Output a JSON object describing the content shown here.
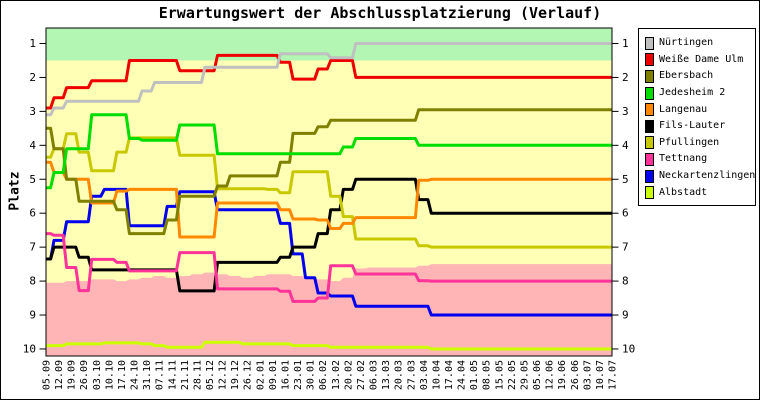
{
  "chart_data": {
    "type": "line",
    "title": "Erwartungswert der Abschlussplatzierung (Verlauf)",
    "ylabel": "Platz",
    "y_ticks": [
      "1",
      "2",
      "3",
      "4",
      "5",
      "6",
      "7",
      "8",
      "9",
      "10"
    ],
    "ylim": [
      0.55,
      10.2
    ],
    "y_inverted": true,
    "grid": false,
    "legend_position": "right-outside",
    "x_labels": [
      "05.09",
      "12.09",
      "19.09",
      "26.09",
      "03.10",
      "10.10",
      "17.10",
      "24.10",
      "31.10",
      "07.11",
      "14.11",
      "21.11",
      "28.11",
      "05.12",
      "12.12",
      "19.12",
      "26.12",
      "02.01",
      "09.01",
      "16.01",
      "23.01",
      "30.01",
      "06.02",
      "13.02",
      "20.02",
      "27.02",
      "06.03",
      "13.03",
      "20.03",
      "27.03",
      "03.04",
      "10.04",
      "17.04",
      "24.04",
      "01.05",
      "08.05",
      "15.05",
      "22.05",
      "29.05",
      "05.06",
      "12.06",
      "19.06",
      "26.06",
      "03.07",
      "10.07",
      "17.07"
    ],
    "bands": {
      "promotion_color": "#b3f6b3",
      "neutral_color": "#ffffb5",
      "relegation_color": "#ffb5b5",
      "promotion_until_platz": 1.5,
      "relegation_boundary": [
        8.05,
        8.05,
        8,
        8,
        7.95,
        7.95,
        8,
        7.95,
        7.9,
        7.85,
        7.9,
        7.85,
        7.8,
        7.75,
        7.8,
        7.85,
        7.9,
        7.85,
        7.8,
        7.8,
        7.85,
        7.9,
        7.95,
        8,
        7.9,
        7.63,
        7.6,
        7.6,
        7.6,
        7.6,
        7.55,
        7.5,
        7.5,
        7.5,
        7.5,
        7.5,
        7.5,
        7.5,
        7.5,
        7.5,
        7.5,
        7.5,
        7.5,
        7.5,
        7.5,
        7.5
      ]
    },
    "series": [
      {
        "name": "Nürtingen",
        "color": "#c0c0c0",
        "values": [
          3.1,
          2.9,
          2.7,
          2.7,
          2.7,
          2.7,
          2.7,
          2.7,
          2.4,
          2.15,
          2.15,
          2.15,
          2.15,
          1.7,
          1.7,
          1.7,
          1.7,
          1.7,
          1.7,
          1.3,
          1.3,
          1.3,
          1.3,
          1.42,
          1.42,
          1,
          1,
          1,
          1,
          1,
          1,
          1,
          1,
          1,
          1,
          1,
          1,
          1,
          1,
          1,
          1,
          1,
          1,
          1,
          1,
          1
        ]
      },
      {
        "name": "Weiße Dame Ulm",
        "color": "#ee0000",
        "values": [
          2.9,
          2.6,
          2.3,
          2.3,
          2.1,
          2.1,
          2.1,
          1.5,
          1.5,
          1.5,
          1.5,
          1.8,
          1.8,
          1.8,
          1.35,
          1.35,
          1.35,
          1.35,
          1.35,
          1.55,
          2.05,
          2.05,
          1.75,
          1.5,
          1.5,
          2,
          2,
          2,
          2,
          2,
          2,
          2,
          2,
          2,
          2,
          2,
          2,
          2,
          2,
          2,
          2,
          2,
          2,
          2,
          2,
          2
        ]
      },
      {
        "name": "Ebersbach",
        "color": "#808000",
        "values": [
          3.5,
          4.1,
          5,
          5.65,
          5.65,
          5.65,
          5.9,
          6.6,
          6.6,
          6.6,
          6.2,
          5.5,
          5.5,
          5.5,
          5.2,
          4.9,
          4.9,
          4.9,
          4.9,
          4.5,
          3.65,
          3.65,
          3.45,
          3.26,
          3.26,
          3.26,
          3.26,
          3.26,
          3.26,
          3.26,
          2.95,
          2.95,
          2.95,
          2.95,
          2.95,
          2.95,
          2.95,
          2.95,
          2.95,
          2.95,
          2.95,
          2.95,
          2.95,
          2.95,
          2.95,
          2.95
        ]
      },
      {
        "name": "Jedesheim 2",
        "color": "#00dd00",
        "values": [
          5.25,
          4.8,
          4.1,
          4.1,
          3.1,
          3.1,
          3.1,
          3.8,
          3.85,
          3.85,
          3.85,
          3.4,
          3.4,
          3.4,
          4.25,
          4.25,
          4.25,
          4.25,
          4.25,
          4.25,
          4.25,
          4.25,
          4.25,
          4.25,
          4.05,
          3.8,
          3.8,
          3.8,
          3.8,
          3.8,
          4,
          4,
          4,
          4,
          4,
          4,
          4,
          4,
          4,
          4,
          4,
          4,
          4,
          4,
          4,
          4
        ]
      },
      {
        "name": "Langenau",
        "color": "#ff8800",
        "values": [
          4.5,
          4.8,
          5,
          5,
          5.7,
          5.7,
          5.35,
          5.3,
          5.3,
          5.3,
          5.3,
          6.7,
          6.7,
          6.7,
          5.7,
          5.7,
          5.7,
          5.7,
          5.7,
          5.9,
          6.17,
          6.17,
          6.2,
          6.45,
          6.3,
          6.13,
          6.13,
          6.13,
          6.13,
          6.13,
          5.03,
          5,
          5,
          5,
          5,
          5,
          5,
          5,
          5,
          5,
          5,
          5,
          5,
          5,
          5,
          5
        ]
      },
      {
        "name": "Fils-Lauter",
        "color": "#000000",
        "values": [
          7.35,
          7,
          7,
          7.3,
          7.67,
          7.67,
          7.67,
          7.67,
          7.67,
          7.67,
          7.67,
          8.29,
          8.29,
          8.29,
          7.45,
          7.45,
          7.45,
          7.45,
          7.45,
          7.3,
          7,
          7,
          6.6,
          5.9,
          5.3,
          5,
          5,
          5,
          5,
          5,
          5.6,
          6,
          6,
          6,
          6,
          6,
          6,
          6,
          6,
          6,
          6,
          6,
          6,
          6,
          6,
          6
        ]
      },
      {
        "name": "Pfullingen",
        "color": "#c8c800",
        "values": [
          4.35,
          4.1,
          3.66,
          4.2,
          4.75,
          4.75,
          4.2,
          3.78,
          3.78,
          3.78,
          3.78,
          4.29,
          4.29,
          4.29,
          5.28,
          5.28,
          5.28,
          5.28,
          5.3,
          5.4,
          4.78,
          4.78,
          4.78,
          5.5,
          6.1,
          6.76,
          6.76,
          6.76,
          6.76,
          6.76,
          6.96,
          7,
          7,
          7,
          7,
          7,
          7,
          7,
          7,
          7,
          7,
          7,
          7,
          7,
          7,
          7
        ]
      },
      {
        "name": "Tettnang",
        "color": "#ff3399",
        "values": [
          6.6,
          6.65,
          7.6,
          8.28,
          7.36,
          7.36,
          7.45,
          7.7,
          7.7,
          7.7,
          7.7,
          7.16,
          7.16,
          7.16,
          8.23,
          8.23,
          8.23,
          8.23,
          8.23,
          8.3,
          8.6,
          8.6,
          8.5,
          7.55,
          7.55,
          7.79,
          7.79,
          7.79,
          7.79,
          7.79,
          7.99,
          8,
          8,
          8,
          8,
          8,
          8,
          8,
          8,
          8,
          8,
          8,
          8,
          8,
          8,
          8
        ]
      },
      {
        "name": "Neckartenzlingen",
        "color": "#0000ee",
        "values": [
          7.35,
          6.8,
          6.25,
          6.25,
          5.5,
          5.3,
          5.3,
          6.37,
          6.37,
          6.37,
          5.8,
          5.37,
          5.37,
          5.37,
          5.9,
          5.9,
          5.9,
          5.9,
          5.9,
          6.3,
          7.2,
          7.9,
          8.35,
          8.44,
          8.44,
          8.74,
          8.74,
          8.74,
          8.74,
          8.74,
          8.74,
          9,
          9,
          9,
          9,
          9,
          9,
          9,
          9,
          9,
          9,
          9,
          9,
          9,
          9,
          9
        ]
      },
      {
        "name": "Albstadt",
        "color": "#ccff00",
        "values": [
          9.9,
          9.9,
          9.85,
          9.85,
          9.85,
          9.82,
          9.82,
          9.82,
          9.85,
          9.9,
          9.95,
          9.95,
          9.95,
          9.8,
          9.8,
          9.8,
          9.85,
          9.85,
          9.85,
          9.85,
          9.9,
          9.9,
          9.9,
          9.95,
          9.95,
          9.95,
          9.95,
          9.95,
          9.95,
          9.95,
          9.95,
          10,
          10,
          10,
          10,
          10,
          10,
          10,
          10,
          10,
          10,
          10,
          10,
          10,
          10,
          10
        ]
      }
    ]
  }
}
